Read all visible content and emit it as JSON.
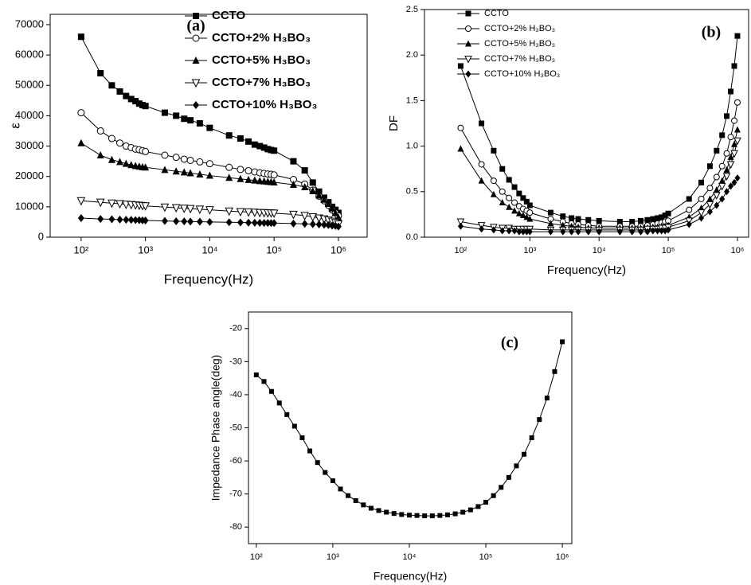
{
  "chart_data": [
    {
      "type": "line",
      "annotation": "(a)",
      "x_label": "Frequency(Hz)",
      "y_label": "ε",
      "log_x": true,
      "legend": "upper right",
      "x": [
        100,
        200,
        300,
        400,
        500,
        600,
        700,
        800,
        900,
        1000,
        2000,
        3000,
        4000,
        5000,
        7000,
        10000,
        20000,
        30000,
        40000,
        50000,
        60000,
        70000,
        80000,
        90000,
        100000,
        200000,
        300000,
        400000,
        500000,
        600000,
        700000,
        800000,
        900000,
        1000000
      ],
      "xlim": [
        33,
        2800000
      ],
      "xticks": [
        {
          "value": 100,
          "label": "10²"
        },
        {
          "value": 1000,
          "label": "10³"
        },
        {
          "value": 10000,
          "label": "10⁴"
        },
        {
          "value": 100000,
          "label": "10⁵"
        },
        {
          "value": 1000000,
          "label": "10⁶"
        }
      ],
      "ylim": [
        0,
        73400
      ],
      "yticks": [
        0,
        10000,
        20000,
        30000,
        40000,
        50000,
        60000,
        70000
      ],
      "series": [
        {
          "name": "CCTO",
          "color": "#000000",
          "marker": "square",
          "values": [
            66000,
            54000,
            50000,
            48000,
            46500,
            45500,
            44800,
            44000,
            43500,
            43200,
            41000,
            40000,
            39000,
            38500,
            37500,
            36000,
            33500,
            32500,
            31500,
            30500,
            30000,
            29500,
            29000,
            28700,
            28500,
            25000,
            22000,
            18000,
            15000,
            13000,
            11500,
            10000,
            9000,
            8000
          ]
        },
        {
          "name": "CCTO+2% H₃BO₃",
          "color": "#000000",
          "marker": "circle",
          "values": [
            41000,
            35000,
            32500,
            31000,
            30000,
            29500,
            29000,
            28800,
            28500,
            28200,
            27000,
            26300,
            25700,
            25300,
            24800,
            24200,
            23000,
            22300,
            21900,
            21500,
            21200,
            21000,
            20800,
            20700,
            20500,
            19000,
            17500,
            15500,
            13500,
            12000,
            10500,
            9000,
            8000,
            7000
          ]
        },
        {
          "name": "CCTO+5% H₃BO₃",
          "color": "#000000",
          "marker": "triangle",
          "values": [
            31000,
            27000,
            25500,
            24800,
            24200,
            23800,
            23500,
            23300,
            23100,
            23000,
            22200,
            21700,
            21400,
            21100,
            20700,
            20300,
            19600,
            19200,
            18900,
            18700,
            18500,
            18400,
            18300,
            18200,
            18100,
            17300,
            16500,
            15200,
            13800,
            12400,
            11000,
            9500,
            8000,
            6500
          ]
        },
        {
          "name": "CCTO+7% H₃BO₃",
          "color": "#000000",
          "marker": "triangle-down",
          "values": [
            12000,
            11500,
            11200,
            11000,
            10800,
            10700,
            10600,
            10500,
            10400,
            10300,
            9900,
            9700,
            9500,
            9400,
            9200,
            9000,
            8600,
            8400,
            8300,
            8200,
            8100,
            8050,
            8000,
            7950,
            7900,
            7500,
            7100,
            6700,
            6300,
            6000,
            5600,
            5200,
            4800,
            4300
          ]
        },
        {
          "name": "CCTO+10% H₃BO₃",
          "color": "#000000",
          "marker": "diamond",
          "values": [
            6300,
            6000,
            5900,
            5800,
            5750,
            5700,
            5650,
            5600,
            5550,
            5500,
            5350,
            5250,
            5200,
            5150,
            5100,
            5000,
            4900,
            4850,
            4800,
            4750,
            4720,
            4700,
            4680,
            4660,
            4640,
            4500,
            4400,
            4300,
            4200,
            4100,
            4000,
            3800,
            3700,
            3500
          ]
        }
      ]
    },
    {
      "type": "line",
      "annotation": "(b)",
      "x_label": "Frequency(Hz)",
      "y_label": "DF",
      "log_x": true,
      "legend": "upper left",
      "x": [
        100,
        200,
        300,
        400,
        500,
        600,
        700,
        800,
        900,
        1000,
        2000,
        3000,
        4000,
        5000,
        7000,
        10000,
        20000,
        30000,
        40000,
        50000,
        60000,
        70000,
        80000,
        90000,
        100000,
        200000,
        300000,
        400000,
        500000,
        600000,
        700000,
        800000,
        900000,
        1000000
      ],
      "xlim": [
        30,
        1450000
      ],
      "xticks": [
        {
          "value": 100,
          "label": "10²"
        },
        {
          "value": 1000,
          "label": "10³"
        },
        {
          "value": 10000,
          "label": "10⁴"
        },
        {
          "value": 100000,
          "label": "10⁵"
        },
        {
          "value": 1000000,
          "label": "10⁶"
        }
      ],
      "ylim": [
        0,
        2.5
      ],
      "yticks": [
        {
          "value": 0,
          "label": "0.0"
        },
        0.5,
        {
          "value": 1,
          "label": "1.0"
        },
        1.5,
        {
          "value": 2,
          "label": "2.0"
        },
        2.5
      ],
      "series": [
        {
          "name": "CCTO",
          "color": "#000000",
          "marker": "square",
          "values": [
            1.88,
            1.25,
            0.95,
            0.75,
            0.63,
            0.55,
            0.48,
            0.43,
            0.39,
            0.35,
            0.27,
            0.23,
            0.21,
            0.2,
            0.19,
            0.18,
            0.17,
            0.17,
            0.18,
            0.19,
            0.2,
            0.21,
            0.22,
            0.24,
            0.26,
            0.42,
            0.6,
            0.78,
            0.95,
            1.12,
            1.33,
            1.6,
            1.88,
            2.21
          ]
        },
        {
          "name": "CCTO+2% H₃BO₃",
          "color": "#000000",
          "marker": "circle",
          "values": [
            1.2,
            0.8,
            0.62,
            0.5,
            0.43,
            0.38,
            0.34,
            0.31,
            0.29,
            0.27,
            0.2,
            0.17,
            0.15,
            0.14,
            0.13,
            0.12,
            0.12,
            0.12,
            0.12,
            0.13,
            0.14,
            0.15,
            0.16,
            0.17,
            0.18,
            0.3,
            0.42,
            0.54,
            0.66,
            0.78,
            0.92,
            1.1,
            1.28,
            1.48
          ]
        },
        {
          "name": "CCTO+5% H₃BO₃",
          "color": "#000000",
          "marker": "triangle",
          "values": [
            0.97,
            0.62,
            0.47,
            0.38,
            0.33,
            0.29,
            0.26,
            0.24,
            0.22,
            0.2,
            0.15,
            0.13,
            0.12,
            0.11,
            0.1,
            0.1,
            0.1,
            0.1,
            0.1,
            0.1,
            0.11,
            0.11,
            0.12,
            0.12,
            0.13,
            0.22,
            0.32,
            0.42,
            0.52,
            0.62,
            0.74,
            0.88,
            1.02,
            1.18
          ]
        },
        {
          "name": "CCTO+7% H₃BO₃",
          "color": "#000000",
          "marker": "triangle-down",
          "values": [
            0.17,
            0.13,
            0.11,
            0.1,
            0.1,
            0.09,
            0.09,
            0.09,
            0.09,
            0.09,
            0.08,
            0.08,
            0.08,
            0.08,
            0.08,
            0.08,
            0.08,
            0.08,
            0.08,
            0.09,
            0.09,
            0.09,
            0.1,
            0.1,
            0.11,
            0.18,
            0.27,
            0.36,
            0.46,
            0.56,
            0.67,
            0.8,
            0.92,
            1.06
          ]
        },
        {
          "name": "CCTO+10% H₃BO₃",
          "color": "#000000",
          "marker": "diamond",
          "values": [
            0.12,
            0.09,
            0.08,
            0.07,
            0.07,
            0.07,
            0.06,
            0.06,
            0.06,
            0.06,
            0.06,
            0.06,
            0.06,
            0.06,
            0.06,
            0.06,
            0.06,
            0.06,
            0.06,
            0.06,
            0.07,
            0.07,
            0.07,
            0.07,
            0.08,
            0.14,
            0.21,
            0.28,
            0.35,
            0.42,
            0.5,
            0.56,
            0.6,
            0.65
          ]
        }
      ]
    },
    {
      "type": "line",
      "annotation": "(c)",
      "x_label": "Frequency(Hz)",
      "y_label": "Impedance Phase angle(deg)",
      "log_x": true,
      "x": [
        100,
        126,
        158,
        200,
        251,
        316,
        398,
        501,
        631,
        794,
        1000,
        1259,
        1585,
        1995,
        2512,
        3162,
        3981,
        5012,
        6310,
        7943,
        10000,
        12589,
        15849,
        19953,
        25119,
        31623,
        39811,
        50119,
        63096,
        79433,
        100000,
        125893,
        158489,
        199526,
        251189,
        316228,
        398107,
        501187,
        630957,
        794328,
        1000000
      ],
      "xlim": [
        79,
        1330000
      ],
      "xticks": [
        {
          "value": 100,
          "label": "10²"
        },
        {
          "value": 1000,
          "label": "10³"
        },
        {
          "value": 10000,
          "label": "10⁴"
        },
        {
          "value": 100000,
          "label": "10⁵"
        },
        {
          "value": 1000000,
          "label": "10⁶"
        }
      ],
      "ylim": [
        -85,
        -15
      ],
      "yticks": [
        -80,
        -70,
        -60,
        -50,
        -40,
        -30,
        -20
      ],
      "color": "#000000",
      "marker": "square",
      "values": [
        -34,
        -36,
        -39,
        -42.5,
        -46,
        -49.5,
        -53,
        -57,
        -60.5,
        -63.5,
        -66,
        -68.5,
        -70.5,
        -72,
        -73.3,
        -74.3,
        -75,
        -75.5,
        -75.9,
        -76.2,
        -76.4,
        -76.5,
        -76.6,
        -76.6,
        -76.5,
        -76.3,
        -76,
        -75.5,
        -74.8,
        -73.8,
        -72.5,
        -70.5,
        -68,
        -65,
        -61.5,
        -58,
        -53,
        -47.5,
        -41,
        -33,
        -24
      ]
    }
  ]
}
